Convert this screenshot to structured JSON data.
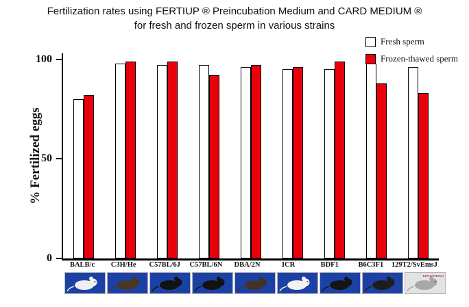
{
  "title": {
    "line1": "Fertilization rates using FERTIUP ® Preincubation Medium and CARD MEDIUM ®",
    "line2": "for fresh and frozen sperm in various strains"
  },
  "legend": {
    "items": [
      {
        "label": "Fresh sperm",
        "color": "#ffffff"
      },
      {
        "label": "Frozen-thawed sperm",
        "color": "#e8000b"
      }
    ]
  },
  "chart_data": {
    "type": "bar",
    "title": "Fertilization rates using FERTIUP® Preincubation Medium and CARD MEDIUM® for fresh and frozen sperm in various strains",
    "categories": [
      "BALB/c",
      "C3H/He",
      "C57BL/6J",
      "C57BL/6N",
      "DBA/2N",
      "ICR",
      "BDF1",
      "B6C3F1",
      "129T2/SvEmsJ"
    ],
    "series": [
      {
        "name": "Fresh sperm",
        "color": "#ffffff",
        "values": [
          80,
          98,
          97,
          97,
          96,
          95,
          95,
          98,
          96
        ]
      },
      {
        "name": "Frozen-thawed sperm",
        "color": "#e8000b",
        "values": [
          82,
          99,
          99,
          92,
          97,
          96,
          99,
          88,
          83
        ]
      }
    ],
    "xlabel": "",
    "ylabel": "% Fertilized eggs",
    "yticks": [
      0,
      50,
      100
    ],
    "ylim": [
      0,
      100
    ],
    "grid": false,
    "legend_position": "top-right"
  },
  "mice": [
    {
      "strain": "BALB/c",
      "bg": "#1c41a6",
      "fur": "#efefef"
    },
    {
      "strain": "C3H/He",
      "bg": "#1c41a6",
      "fur": "#4a3625"
    },
    {
      "strain": "C57BL/6J",
      "bg": "#1c41a6",
      "fur": "#121212"
    },
    {
      "strain": "C57BL/6N",
      "bg": "#1c41a6",
      "fur": "#121212"
    },
    {
      "strain": "DBA/2N",
      "bg": "#1c41a6",
      "fur": "#41332a"
    },
    {
      "strain": "ICR",
      "bg": "#1c41a6",
      "fur": "#f2f2f2"
    },
    {
      "strain": "BDF1",
      "bg": "#1c41a6",
      "fur": "#141414"
    },
    {
      "strain": "B6C3F1",
      "bg": "#1c41a6",
      "fur": "#1d1d1d"
    },
    {
      "strain": "129T2/SvEmsJ",
      "bg": "#e3e3e3",
      "fur": "#a8a8a8",
      "caption": "129T2/SvEmsJ"
    }
  ]
}
